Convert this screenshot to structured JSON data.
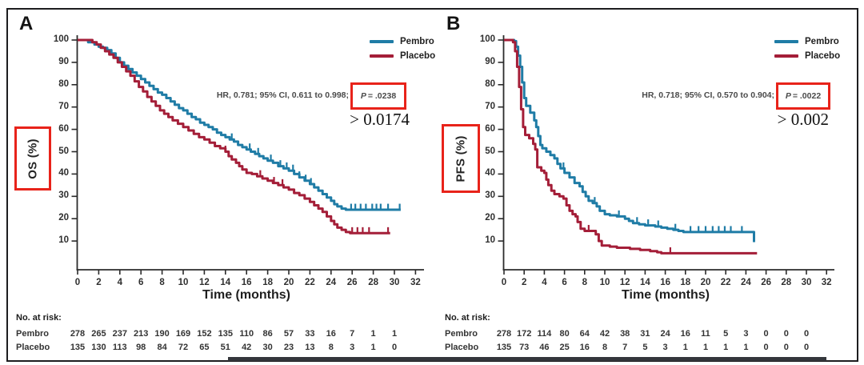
{
  "figure": {
    "border_color": "#1d1d1f",
    "bottom_bar_color": "#34373c",
    "annotation_box_color": "#e8231a"
  },
  "chart_data": [
    {
      "type": "line",
      "subtype": "kaplan_meier_step",
      "panel_label": "A",
      "title": "",
      "xlabel": "Time (months)",
      "ylabel": "OS (%)",
      "xlim": [
        0,
        32
      ],
      "ylim": [
        0,
        100
      ],
      "xticks": [
        0,
        2,
        4,
        6,
        8,
        10,
        12,
        14,
        16,
        18,
        20,
        22,
        24,
        26,
        28,
        30,
        32
      ],
      "yticks": [
        10,
        20,
        30,
        40,
        50,
        60,
        70,
        80,
        90,
        100
      ],
      "grid": false,
      "legend_position": "top-right",
      "legend": [
        {
          "label": "Pembro",
          "color": "#1f7ca6"
        },
        {
          "label": "Placebo",
          "color": "#a41e38"
        }
      ],
      "annotation": {
        "hr_text": "HR, 0.781; 95% CI, 0.611 to 0.998;",
        "p_italic": "P",
        "p_rest": "= .0238",
        "overlay_text": "> 0.0174"
      },
      "series": [
        {
          "name": "Pembro",
          "color": "#1f7ca6",
          "points": [
            [
              0,
              100
            ],
            [
              1,
              99
            ],
            [
              1.6,
              98
            ],
            [
              2,
              97
            ],
            [
              2.4,
              96.5
            ],
            [
              2.8,
              95.5
            ],
            [
              3.2,
              94
            ],
            [
              3.6,
              92
            ],
            [
              4,
              90
            ],
            [
              4.4,
              88.5
            ],
            [
              4.8,
              87
            ],
            [
              5.2,
              85.5
            ],
            [
              5.6,
              84
            ],
            [
              6,
              82.5
            ],
            [
              6.4,
              81
            ],
            [
              6.8,
              79.5
            ],
            [
              7.2,
              78
            ],
            [
              7.6,
              76.5
            ],
            [
              8,
              75.5
            ],
            [
              8.4,
              74
            ],
            [
              8.8,
              72.5
            ],
            [
              9.2,
              71
            ],
            [
              9.6,
              69.5
            ],
            [
              10,
              68.5
            ],
            [
              10.4,
              67
            ],
            [
              10.8,
              65.5
            ],
            [
              11.2,
              64.5
            ],
            [
              11.6,
              63
            ],
            [
              12,
              62
            ],
            [
              12.4,
              61
            ],
            [
              12.8,
              60
            ],
            [
              13.2,
              58.5
            ],
            [
              13.6,
              57.5
            ],
            [
              14,
              56.5
            ],
            [
              14.4,
              55.5
            ],
            [
              14.8,
              54.5
            ],
            [
              15.2,
              53
            ],
            [
              15.6,
              52
            ],
            [
              16,
              51
            ],
            [
              16.4,
              50
            ],
            [
              16.8,
              49
            ],
            [
              17.2,
              48
            ],
            [
              17.6,
              47
            ],
            [
              18,
              46
            ],
            [
              18.5,
              45
            ],
            [
              19,
              43.5
            ],
            [
              19.5,
              42.5
            ],
            [
              20,
              41.5
            ],
            [
              20.5,
              40
            ],
            [
              21,
              38.5
            ],
            [
              21.5,
              37
            ],
            [
              22,
              35.5
            ],
            [
              22.4,
              34
            ],
            [
              22.8,
              32.5
            ],
            [
              23.2,
              31
            ],
            [
              23.6,
              29.5
            ],
            [
              24,
              28
            ],
            [
              24.3,
              26.5
            ],
            [
              24.6,
              25.5
            ],
            [
              25,
              24.5
            ],
            [
              25.4,
              24
            ],
            [
              30.6,
              24
            ]
          ],
          "censor_months": [
            14.6,
            16.3,
            17.1,
            18.3,
            19.2,
            19.8,
            20.4,
            21.0,
            21.6,
            22.1,
            25.9,
            26.3,
            26.8,
            27.3,
            27.9,
            28.3,
            28.7,
            29.4,
            30.5
          ]
        },
        {
          "name": "Placebo",
          "color": "#a41e38",
          "points": [
            [
              0,
              100
            ],
            [
              1.4,
              99
            ],
            [
              1.8,
              98
            ],
            [
              2.2,
              96.5
            ],
            [
              2.6,
              95
            ],
            [
              3,
              93.5
            ],
            [
              3.4,
              92
            ],
            [
              3.8,
              90
            ],
            [
              4.2,
              88
            ],
            [
              4.6,
              86
            ],
            [
              5,
              84
            ],
            [
              5.4,
              81.5
            ],
            [
              5.8,
              79
            ],
            [
              6.2,
              77
            ],
            [
              6.6,
              74.5
            ],
            [
              7,
              72.5
            ],
            [
              7.4,
              70.5
            ],
            [
              7.8,
              68.5
            ],
            [
              8.2,
              67
            ],
            [
              8.6,
              65.5
            ],
            [
              9,
              64
            ],
            [
              9.5,
              62.5
            ],
            [
              10,
              61
            ],
            [
              10.5,
              59.5
            ],
            [
              11,
              58
            ],
            [
              11.5,
              56.5
            ],
            [
              12,
              55.5
            ],
            [
              12.5,
              54
            ],
            [
              13,
              52.5
            ],
            [
              13.5,
              51.5
            ],
            [
              14,
              50
            ],
            [
              14.3,
              48
            ],
            [
              14.6,
              46.5
            ],
            [
              15,
              45
            ],
            [
              15.3,
              43.5
            ],
            [
              15.6,
              42
            ],
            [
              16,
              40.5
            ],
            [
              16.5,
              40
            ],
            [
              17,
              39
            ],
            [
              17.5,
              38
            ],
            [
              18,
              37
            ],
            [
              18.5,
              36
            ],
            [
              19,
              35
            ],
            [
              19.5,
              34
            ],
            [
              20,
              33
            ],
            [
              20.5,
              31.5
            ],
            [
              21,
              30.5
            ],
            [
              21.5,
              29
            ],
            [
              22,
              27.5
            ],
            [
              22.4,
              26
            ],
            [
              22.8,
              24.5
            ],
            [
              23.2,
              23
            ],
            [
              23.6,
              21
            ],
            [
              24,
              19
            ],
            [
              24.3,
              17.5
            ],
            [
              24.6,
              16
            ],
            [
              25,
              15
            ],
            [
              25.4,
              14
            ],
            [
              25.8,
              13.5
            ],
            [
              29.6,
              13.5
            ]
          ],
          "censor_months": [
            14.0,
            17.3,
            18.6,
            19.4,
            26.0,
            26.5,
            27.0,
            27.6,
            29.4
          ]
        }
      ],
      "risk_table": {
        "title": "No. at risk:",
        "months": [
          0,
          2,
          4,
          6,
          8,
          10,
          12,
          14,
          16,
          18,
          20,
          22,
          24,
          26,
          28,
          30
        ],
        "rows": [
          {
            "name": "Pembro",
            "values": [
              278,
              265,
              237,
              213,
              190,
              169,
              152,
              135,
              110,
              86,
              57,
              33,
              16,
              7,
              1,
              1
            ]
          },
          {
            "name": "Placebo",
            "values": [
              135,
              130,
              113,
              98,
              84,
              72,
              65,
              51,
              42,
              30,
              23,
              13,
              8,
              3,
              1,
              0
            ]
          }
        ]
      }
    },
    {
      "type": "line",
      "subtype": "kaplan_meier_step",
      "panel_label": "B",
      "title": "",
      "xlabel": "Time (months)",
      "ylabel": "PFS (%)",
      "xlim": [
        0,
        32
      ],
      "ylim": [
        0,
        100
      ],
      "xticks": [
        0,
        2,
        4,
        6,
        8,
        10,
        12,
        14,
        16,
        18,
        20,
        22,
        24,
        26,
        28,
        30,
        32
      ],
      "yticks": [
        10,
        20,
        30,
        40,
        50,
        60,
        70,
        80,
        90,
        100
      ],
      "grid": false,
      "legend_position": "top-right",
      "legend": [
        {
          "label": "Pembro",
          "color": "#1f7ca6"
        },
        {
          "label": "Placebo",
          "color": "#a41e38"
        }
      ],
      "annotation": {
        "hr_text": "HR, 0.718; 95% CI, 0.570 to 0.904;",
        "p_italic": "P",
        "p_rest": "= .0022",
        "overlay_text": "> 0.002"
      },
      "series": [
        {
          "name": "Pembro",
          "color": "#1f7ca6",
          "points": [
            [
              0,
              100
            ],
            [
              1,
              99.5
            ],
            [
              1.2,
              97
            ],
            [
              1.4,
              93
            ],
            [
              1.6,
              88
            ],
            [
              1.8,
              81
            ],
            [
              2,
              74
            ],
            [
              2.2,
              70.5
            ],
            [
              2.6,
              67.5
            ],
            [
              3,
              64
            ],
            [
              3.2,
              61
            ],
            [
              3.4,
              57
            ],
            [
              3.6,
              53
            ],
            [
              3.8,
              51.5
            ],
            [
              4.2,
              50
            ],
            [
              4.6,
              48.5
            ],
            [
              5,
              47
            ],
            [
              5.3,
              44.5
            ],
            [
              5.6,
              42.5
            ],
            [
              6,
              40.5
            ],
            [
              6.5,
              38.5
            ],
            [
              7,
              36
            ],
            [
              7.5,
              34.5
            ],
            [
              7.8,
              32
            ],
            [
              8.1,
              30
            ],
            [
              8.4,
              28
            ],
            [
              8.8,
              27
            ],
            [
              9.2,
              25.5
            ],
            [
              9.5,
              23.5
            ],
            [
              10,
              22
            ],
            [
              10.5,
              21.5
            ],
            [
              11.2,
              21
            ],
            [
              12,
              20
            ],
            [
              12.4,
              19
            ],
            [
              12.8,
              18
            ],
            [
              13.4,
              17.5
            ],
            [
              14,
              17
            ],
            [
              15,
              16.5
            ],
            [
              15.6,
              16
            ],
            [
              16.2,
              15.5
            ],
            [
              16.8,
              15
            ],
            [
              17.3,
              14.5
            ],
            [
              17.8,
              14
            ],
            [
              24.7,
              14
            ],
            [
              24.8,
              9.5
            ]
          ],
          "censor_months": [
            5.9,
            9.0,
            11.4,
            13.2,
            14.3,
            15.3,
            17.0,
            18.5,
            19.3,
            20.0,
            20.7,
            21.3,
            21.9,
            22.5,
            23.6
          ]
        },
        {
          "name": "Placebo",
          "color": "#a41e38",
          "points": [
            [
              0,
              100
            ],
            [
              0.9,
              99
            ],
            [
              1.1,
              95
            ],
            [
              1.3,
              88
            ],
            [
              1.5,
              79
            ],
            [
              1.7,
              69
            ],
            [
              1.9,
              61
            ],
            [
              2.1,
              57.5
            ],
            [
              2.5,
              56
            ],
            [
              2.9,
              53.5
            ],
            [
              3.1,
              51
            ],
            [
              3.3,
              43
            ],
            [
              3.7,
              41.5
            ],
            [
              4,
              40.5
            ],
            [
              4.2,
              37.5
            ],
            [
              4.4,
              35
            ],
            [
              4.7,
              32.5
            ],
            [
              5,
              31
            ],
            [
              5.5,
              30
            ],
            [
              5.9,
              29
            ],
            [
              6.2,
              26
            ],
            [
              6.5,
              23.5
            ],
            [
              6.8,
              22
            ],
            [
              7.1,
              21
            ],
            [
              7.3,
              18.5
            ],
            [
              7.6,
              15.5
            ],
            [
              8,
              14.5
            ],
            [
              8.8,
              14.5
            ],
            [
              9.1,
              13
            ],
            [
              9.4,
              10
            ],
            [
              9.7,
              8
            ],
            [
              10.5,
              7.5
            ],
            [
              11.2,
              7
            ],
            [
              12.5,
              6.5
            ],
            [
              13.5,
              6
            ],
            [
              14.5,
              5.5
            ],
            [
              15.2,
              5
            ],
            [
              15.6,
              4.5
            ],
            [
              25.1,
              4.5
            ]
          ],
          "censor_months": [
            8.4,
            16.5
          ]
        }
      ],
      "risk_table": {
        "title": "No. at risk:",
        "months": [
          0,
          2,
          4,
          6,
          8,
          10,
          12,
          14,
          16,
          18,
          20,
          22,
          24,
          26,
          28,
          30
        ],
        "rows": [
          {
            "name": "Pembro",
            "values": [
              278,
              172,
              114,
              80,
              64,
              42,
              38,
              31,
              24,
              16,
              11,
              5,
              3,
              0,
              0,
              0
            ]
          },
          {
            "name": "Placebo",
            "values": [
              135,
              73,
              46,
              25,
              16,
              8,
              7,
              5,
              3,
              1,
              1,
              1,
              1,
              0,
              0,
              0
            ]
          }
        ]
      }
    }
  ]
}
